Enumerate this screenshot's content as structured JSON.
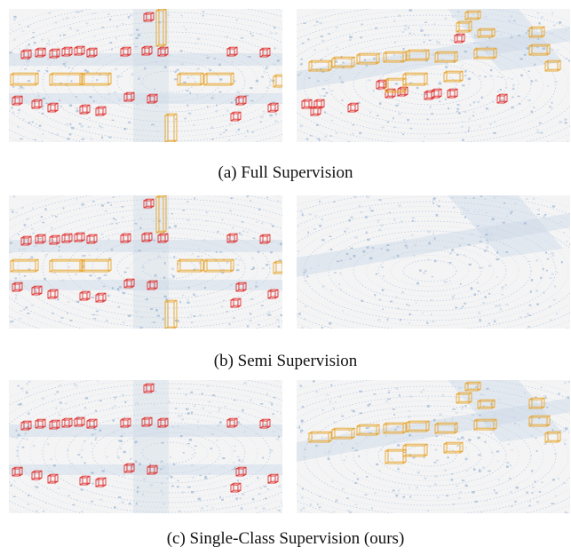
{
  "figure": {
    "captions": [
      "(a) Full Supervision",
      "(b) Semi Supervision",
      "(c) Single-Class Supervision (ours)"
    ],
    "rows": [
      {
        "left": {
          "red_boxes": true,
          "orange_boxes": true
        },
        "right": {
          "red_boxes": true,
          "orange_boxes": true
        }
      },
      {
        "left": {
          "red_boxes": true,
          "orange_boxes": true
        },
        "right": {
          "red_boxes": false,
          "orange_boxes": false
        }
      },
      {
        "left": {
          "red_boxes": true,
          "orange_boxes": false
        },
        "right": {
          "red_boxes": false,
          "orange_boxes": true
        }
      }
    ],
    "colors": {
      "red_box": "#e0312f",
      "orange_box": "#e8a42a",
      "points": "#9cb6d3",
      "points_light": "#c9d7e6",
      "panel_bg": "#f4f4f5"
    }
  }
}
